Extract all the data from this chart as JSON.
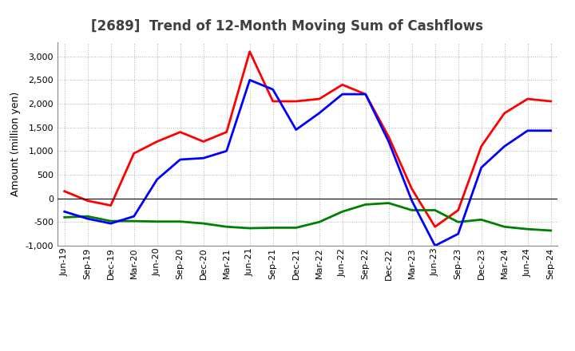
{
  "title": "[2689]  Trend of 12-Month Moving Sum of Cashflows",
  "ylabel": "Amount (million yen)",
  "x_labels": [
    "Jun-19",
    "Sep-19",
    "Dec-19",
    "Mar-20",
    "Jun-20",
    "Sep-20",
    "Dec-20",
    "Mar-21",
    "Jun-21",
    "Sep-21",
    "Dec-21",
    "Mar-22",
    "Jun-22",
    "Sep-22",
    "Dec-22",
    "Mar-23",
    "Jun-23",
    "Sep-23",
    "Dec-23",
    "Mar-24",
    "Jun-24",
    "Sep-24"
  ],
  "operating_cashflow": [
    150,
    -50,
    -150,
    950,
    1200,
    1400,
    1200,
    1400,
    3100,
    2050,
    2050,
    2100,
    2400,
    2200,
    1300,
    200,
    -600,
    -250,
    1100,
    1800,
    2100,
    2050
  ],
  "investing_cashflow": [
    -400,
    -380,
    -480,
    -480,
    -490,
    -490,
    -530,
    -600,
    -630,
    -620,
    -620,
    -500,
    -280,
    -130,
    -100,
    -250,
    -250,
    -500,
    -450,
    -600,
    -650,
    -680
  ],
  "free_cashflow": [
    -280,
    -430,
    -530,
    -380,
    400,
    820,
    850,
    1000,
    2500,
    2300,
    1450,
    1800,
    2200,
    2200,
    1200,
    -50,
    -1000,
    -750,
    650,
    1100,
    1430,
    1430
  ],
  "ylim": [
    -1000,
    3300
  ],
  "yticks": [
    -1000,
    -500,
    0,
    500,
    1000,
    1500,
    2000,
    2500,
    3000
  ],
  "operating_color": "#ff0000",
  "investing_color": "#008000",
  "free_color": "#0000ff",
  "line_width": 2.0,
  "bg_color": "#ffffff",
  "grid_color": "#aaaaaa",
  "title_fontsize": 12,
  "axis_fontsize": 8,
  "ylabel_fontsize": 9,
  "legend_fontsize": 9,
  "title_color": "#404040"
}
